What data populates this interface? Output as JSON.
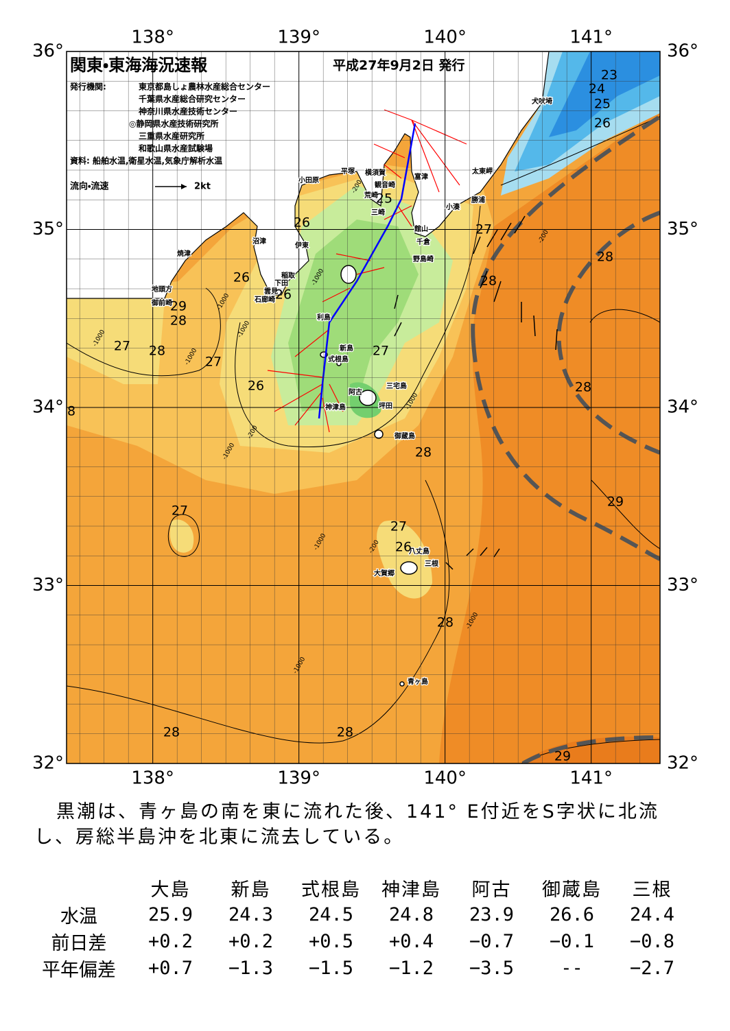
{
  "map": {
    "title": "関東・東海海況速報",
    "issue_date": "平成27年9月2日 発行",
    "issuer_label": "発行機関:",
    "issuers": [
      "東京都島しょ農林水産総合センター",
      "千葉県水産総合研究センター",
      "神奈川県水産技術センター",
      "◎静岡県水産技術研究所",
      "三重県水産研究所",
      "和歌山県水産試験場"
    ],
    "sources": "資料: 船舶水温,衛星水温,気象庁解析水温",
    "legend": {
      "label": "流向・流速",
      "scale": "2kt"
    },
    "lon_ticks": [
      {
        "value": 138,
        "label": "138°"
      },
      {
        "value": 139,
        "label": "139°"
      },
      {
        "value": 140,
        "label": "140°"
      },
      {
        "value": 141,
        "label": "141°"
      }
    ],
    "lat_ticks": [
      {
        "value": 36,
        "label": "36°"
      },
      {
        "value": 35,
        "label": "35°"
      },
      {
        "value": 34,
        "label": "34°"
      },
      {
        "value": 33,
        "label": "33°"
      },
      {
        "value": 32,
        "label": "32°"
      }
    ],
    "place_names": [
      "犬吠埼",
      "太東岬",
      "勝浦",
      "小湊",
      "富津",
      "横須賀",
      "平塚",
      "小田原",
      "観音崎",
      "荒崎",
      "三崎",
      "館山",
      "千倉",
      "野島崎",
      "沼津",
      "伊東",
      "焼津",
      "稲取",
      "下田",
      "雲見",
      "石廊崎",
      "地頭方",
      "御前崎",
      "利島",
      "新島",
      "式根島",
      "神津島",
      "三宅島",
      "阿古",
      "坪田",
      "御蔵島",
      "八丈島",
      "三根",
      "大賀郷",
      "青ヶ島"
    ],
    "contour_labels": [
      23,
      24,
      25,
      26,
      27,
      28,
      28,
      26,
      26,
      26,
      29,
      28,
      27,
      28,
      27,
      27,
      26,
      28,
      28,
      29,
      27,
      27,
      26,
      28,
      28,
      28,
      29,
      25,
      8
    ],
    "depth_labels": [
      "-200",
      "-1000",
      "-1000",
      "-1000",
      "-1000",
      "-200",
      "-1000",
      "-1000",
      "-1000",
      "-1000",
      "-200",
      "-1000",
      "-1000",
      "-200"
    ]
  },
  "summary": {
    "lines": [
      "黒潮は、青ヶ島の南を東に流れた後、141° E付近をS字状に北流",
      "し、房総半島沖を北東に流去している。"
    ]
  },
  "table": {
    "columns": [
      "大島",
      "新島",
      "式根島",
      "神津島",
      "阿古",
      "御蔵島",
      "三根"
    ],
    "rows": [
      {
        "label": "水温",
        "values": [
          "25.9",
          "24.3",
          "24.5",
          "24.8",
          "23.9",
          "26.6",
          "24.4"
        ]
      },
      {
        "label": "前日差",
        "values": [
          "+0.2",
          "+0.2",
          "+0.5",
          "+0.4",
          "−0.7",
          "−0.1",
          "−0.8"
        ]
      },
      {
        "label": "平年偏差",
        "values": [
          "+0.7",
          "−1.3",
          "−1.5",
          "−1.2",
          "−3.5",
          "--",
          "−2.7"
        ]
      }
    ]
  }
}
